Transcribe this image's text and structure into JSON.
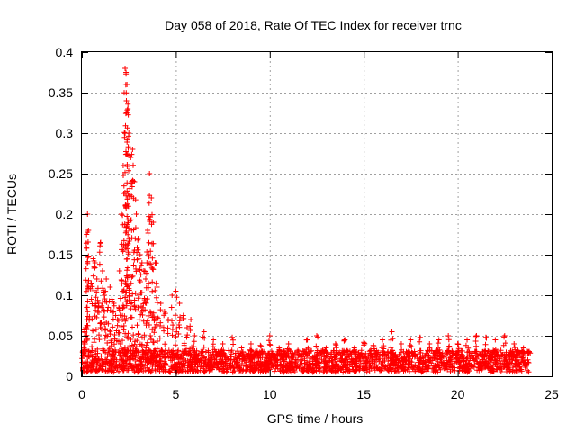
{
  "chart_data": {
    "type": "scatter",
    "title": "Day 058 of 2018, Rate Of TEC Index for receiver trnc",
    "xlabel": "GPS time / hours",
    "ylabel": "ROTI / TECUs",
    "xlim": [
      0,
      25
    ],
    "ylim": [
      0,
      0.4
    ],
    "xticks": [
      0,
      5,
      10,
      15,
      20,
      25
    ],
    "yticks": [
      0,
      0.05,
      0.1,
      0.15,
      0.2,
      0.25,
      0.3,
      0.35,
      0.4
    ],
    "xtick_labels": [
      "0",
      "5",
      "10",
      "15",
      "20",
      "25"
    ],
    "ytick_labels": [
      "0",
      "0.05",
      "0.1",
      "0.15",
      "0.2",
      "0.25",
      "0.3",
      "0.35",
      "0.4"
    ],
    "grid": true,
    "marker": "+",
    "color": "#ff0000",
    "series": [
      {
        "name": "ROTI",
        "x": [
          0.05,
          0.1,
          0.15,
          0.2,
          0.25,
          0.3,
          0.35,
          0.5,
          0.6,
          0.7,
          0.8,
          0.9,
          1.0,
          1.1,
          1.2,
          1.3,
          1.4,
          1.5,
          1.6,
          1.7,
          1.8,
          1.9,
          2.0,
          2.1,
          2.2,
          2.3,
          2.35,
          2.4,
          2.45,
          2.5,
          2.6,
          2.7,
          2.8,
          2.9,
          3.0,
          3.1,
          3.2,
          3.3,
          3.4,
          3.5,
          3.6,
          3.7,
          3.8,
          3.9,
          4.0,
          4.2,
          4.4,
          4.6,
          4.8,
          5.0,
          5.2,
          5.4,
          5.6,
          5.8,
          6.0,
          6.5,
          7.0,
          7.5,
          8.0,
          8.5,
          9.0,
          9.5,
          10.0,
          10.5,
          11.0,
          11.5,
          12.0,
          12.5,
          13.0,
          13.5,
          14.0,
          14.5,
          15.0,
          15.5,
          16.0,
          16.5,
          17.0,
          17.5,
          18.0,
          18.5,
          19.0,
          19.5,
          20.0,
          20.5,
          21.0,
          21.5,
          22.0,
          22.5,
          23.0,
          23.5,
          23.8
        ],
        "y": [
          0.03,
          0.04,
          0.055,
          0.06,
          0.175,
          0.2,
          0.18,
          0.115,
          0.145,
          0.14,
          0.12,
          0.09,
          0.165,
          0.13,
          0.1,
          0.12,
          0.085,
          0.11,
          0.095,
          0.09,
          0.075,
          0.07,
          0.13,
          0.2,
          0.26,
          0.38,
          0.375,
          0.36,
          0.33,
          0.3,
          0.27,
          0.28,
          0.24,
          0.2,
          0.17,
          0.15,
          0.14,
          0.13,
          0.12,
          0.18,
          0.25,
          0.22,
          0.19,
          0.14,
          0.11,
          0.09,
          0.08,
          0.07,
          0.1,
          0.105,
          0.09,
          0.075,
          0.06,
          0.07,
          0.05,
          0.055,
          0.045,
          0.04,
          0.048,
          0.035,
          0.04,
          0.038,
          0.05,
          0.035,
          0.04,
          0.032,
          0.045,
          0.05,
          0.035,
          0.04,
          0.045,
          0.035,
          0.042,
          0.038,
          0.045,
          0.055,
          0.04,
          0.045,
          0.048,
          0.04,
          0.045,
          0.05,
          0.04,
          0.045,
          0.05,
          0.048,
          0.045,
          0.05,
          0.04,
          0.035,
          0.03
        ]
      }
    ],
    "baseline_band": {
      "x_range": [
        0,
        23.8
      ],
      "y_range": [
        0.005,
        0.032
      ],
      "density": 2200
    }
  }
}
